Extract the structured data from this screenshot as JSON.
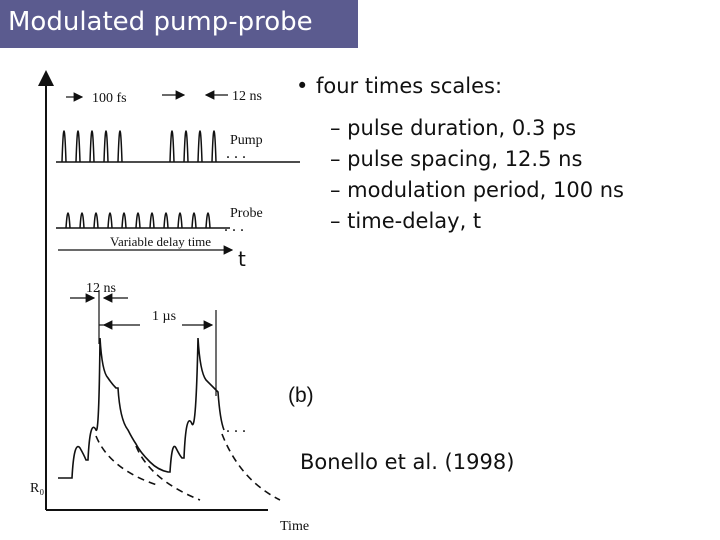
{
  "title": "Modulated pump-probe",
  "bullet": "four times scales:",
  "sub_items": [
    "– pulse duration, 0.3 ps",
    "– pulse spacing, 12.5 ns",
    "– modulation period, 100 ns",
    "– time-delay, t"
  ],
  "citation": "Bonello et al. (1998)",
  "figure": {
    "label_100fs": "100 fs",
    "label_12ns_top": "12 ns",
    "label_pump": "Pump",
    "label_probe": "Probe",
    "label_variable_delay": "Variable delay time",
    "label_t": "t",
    "label_12ns_lower": "12 ns",
    "label_1us": "1 µs",
    "label_b": "(b)",
    "label_r0": "R₀",
    "label_time": "Time",
    "ellipsis": ". . ."
  },
  "colors": {
    "title_bg": "#5b5b8f",
    "title_text": "#ffffff"
  }
}
